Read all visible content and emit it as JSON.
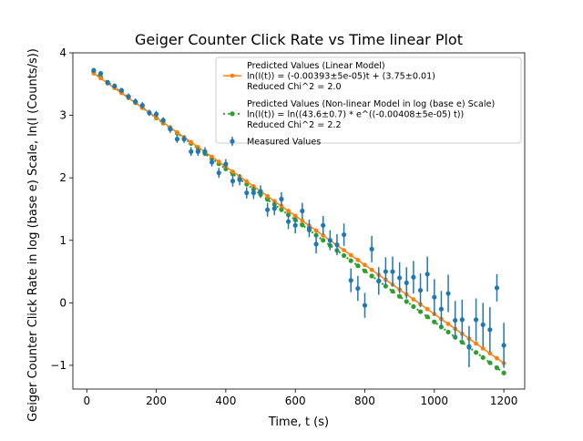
{
  "chart_data": {
    "type": "scatter",
    "title": "Geiger Counter Click Rate vs Time linear Plot",
    "xlabel": "Time, t (s)",
    "ylabel": "Geiger Counter Click Rate in log (base e) Scale, ln(I (Counts/s))",
    "xlim": [
      -40,
      1260
    ],
    "ylim": [
      -1.38,
      4.0
    ],
    "xticks": [
      0,
      200,
      400,
      600,
      800,
      1000,
      1200
    ],
    "yticks": [
      -1,
      0,
      1,
      2,
      3,
      4
    ],
    "grid": false,
    "legend_position": "upper right",
    "series": [
      {
        "name": "Measured Values",
        "kind": "errorbar",
        "color": "#1f77b4",
        "x": [
          20,
          40,
          60,
          80,
          100,
          120,
          140,
          160,
          180,
          200,
          220,
          240,
          260,
          280,
          300,
          320,
          340,
          360,
          380,
          400,
          420,
          440,
          460,
          480,
          500,
          520,
          540,
          560,
          580,
          600,
          620,
          640,
          660,
          680,
          700,
          720,
          740,
          760,
          780,
          800,
          820,
          840,
          860,
          880,
          900,
          920,
          940,
          960,
          980,
          1000,
          1020,
          1040,
          1060,
          1080,
          1100,
          1120,
          1140,
          1160,
          1180,
          1200
        ],
        "y": [
          3.72,
          3.67,
          3.52,
          3.47,
          3.4,
          3.3,
          3.22,
          3.16,
          3.04,
          3.02,
          2.92,
          2.78,
          2.62,
          2.62,
          2.42,
          2.42,
          2.42,
          2.25,
          2.08,
          2.22,
          1.95,
          1.97,
          1.76,
          1.76,
          1.78,
          1.49,
          1.51,
          1.66,
          1.3,
          1.24,
          1.47,
          1.19,
          0.94,
          1.24,
          1.0,
          0.93,
          1.09,
          0.36,
          0.23,
          -0.04,
          0.86,
          0.35,
          0.5,
          0.5,
          0.4,
          0.32,
          0.41,
          0.2,
          0.46,
          0.09,
          -0.1,
          0.15,
          -0.28,
          -0.27,
          -0.7,
          -0.27,
          -0.35,
          -0.43,
          0.24,
          -0.68
        ],
        "yerr": [
          0.04,
          0.04,
          0.04,
          0.04,
          0.04,
          0.05,
          0.05,
          0.05,
          0.05,
          0.05,
          0.05,
          0.06,
          0.06,
          0.06,
          0.07,
          0.07,
          0.07,
          0.07,
          0.08,
          0.08,
          0.09,
          0.09,
          0.09,
          0.1,
          0.1,
          0.11,
          0.11,
          0.11,
          0.12,
          0.13,
          0.13,
          0.14,
          0.15,
          0.15,
          0.16,
          0.17,
          0.18,
          0.19,
          0.2,
          0.2,
          0.21,
          0.22,
          0.23,
          0.24,
          0.25,
          0.25,
          0.26,
          0.27,
          0.28,
          0.29,
          0.29,
          0.3,
          0.31,
          0.32,
          0.33,
          0.34,
          0.35,
          0.36,
          0.22,
          0.36
        ]
      },
      {
        "name": "Predicted Values (Linear Model)",
        "legend_lines": [
          "Predicted Values (Linear Model)",
          "ln(I(t)) = (-0.00393±5e-05)t + (3.75±0.01)",
          "Reduced Chi^2 = 2.0"
        ],
        "kind": "line-marker",
        "style": "solid",
        "color": "#ff7f0e",
        "slope": -0.00393,
        "intercept": 3.75
      },
      {
        "name": "Predicted Values (Non-linear Model in log (base e) Scale)",
        "legend_lines": [
          "Predicted Values (Non-linear Model in log (base e) Scale)",
          "ln(I(t)) = ln((43.6±0.7) * e^((-0.00408±5e-05) t))",
          "Reduced Chi^2 = 2.2"
        ],
        "kind": "line-marker",
        "style": "dotted",
        "color": "#2ca02c",
        "amplitude": 43.6,
        "rate": -0.00408
      }
    ]
  }
}
